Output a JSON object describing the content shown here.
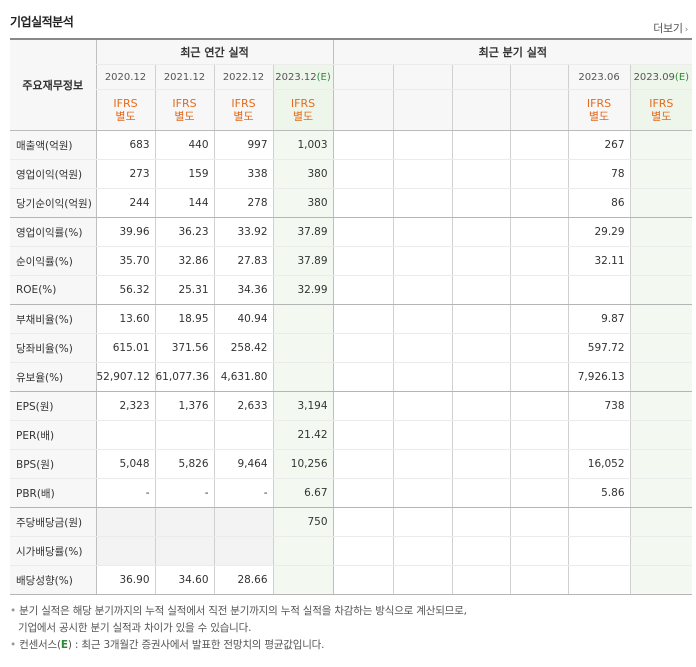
{
  "title": "기업실적분석",
  "more_label": "더보기",
  "header": {
    "row_label": "주요재무정보",
    "annual_group": "최근 연간 실적",
    "quarter_group": "최근 분기 실적",
    "annual_periods": [
      "2020.12",
      "2021.12",
      "2022.12",
      "2023.12(E)"
    ],
    "quarter_periods": [
      "",
      "",
      "",
      "",
      "2023.06",
      "2023.09(E)"
    ],
    "ifrs_top": "IFRS",
    "ifrs_bottom": "별도"
  },
  "rows": [
    {
      "label": "매출액(억원)",
      "annual": [
        "683",
        "440",
        "997",
        "1,003"
      ],
      "quarter": [
        "",
        "",
        "",
        "",
        "267",
        ""
      ]
    },
    {
      "label": "영업이익(억원)",
      "annual": [
        "273",
        "159",
        "338",
        "380"
      ],
      "quarter": [
        "",
        "",
        "",
        "",
        "78",
        ""
      ]
    },
    {
      "label": "당기순이익(억원)",
      "annual": [
        "244",
        "144",
        "278",
        "380"
      ],
      "quarter": [
        "",
        "",
        "",
        "",
        "86",
        ""
      ]
    },
    {
      "label": "영업이익률(%)",
      "annual": [
        "39.96",
        "36.23",
        "33.92",
        "37.89"
      ],
      "quarter": [
        "",
        "",
        "",
        "",
        "29.29",
        ""
      ]
    },
    {
      "label": "순이익률(%)",
      "annual": [
        "35.70",
        "32.86",
        "27.83",
        "37.89"
      ],
      "quarter": [
        "",
        "",
        "",
        "",
        "32.11",
        ""
      ]
    },
    {
      "label": "ROE(%)",
      "annual": [
        "56.32",
        "25.31",
        "34.36",
        "32.99"
      ],
      "quarter": [
        "",
        "",
        "",
        "",
        "",
        ""
      ]
    },
    {
      "label": "부채비율(%)",
      "annual": [
        "13.60",
        "18.95",
        "40.94",
        ""
      ],
      "quarter": [
        "",
        "",
        "",
        "",
        "9.87",
        ""
      ]
    },
    {
      "label": "당좌비율(%)",
      "annual": [
        "615.01",
        "371.56",
        "258.42",
        ""
      ],
      "quarter": [
        "",
        "",
        "",
        "",
        "597.72",
        ""
      ]
    },
    {
      "label": "유보율(%)",
      "annual": [
        "52,907.12",
        "61,077.36",
        "4,631.80",
        ""
      ],
      "quarter": [
        "",
        "",
        "",
        "",
        "7,926.13",
        ""
      ]
    },
    {
      "label": "EPS(원)",
      "annual": [
        "2,323",
        "1,376",
        "2,633",
        "3,194"
      ],
      "quarter": [
        "",
        "",
        "",
        "",
        "738",
        ""
      ]
    },
    {
      "label": "PER(배)",
      "annual": [
        "",
        "",
        "",
        "21.42"
      ],
      "quarter": [
        "",
        "",
        "",
        "",
        "",
        ""
      ]
    },
    {
      "label": "BPS(원)",
      "annual": [
        "5,048",
        "5,826",
        "9,464",
        "10,256"
      ],
      "quarter": [
        "",
        "",
        "",
        "",
        "16,052",
        ""
      ]
    },
    {
      "label": "PBR(배)",
      "annual": [
        "-",
        "-",
        "-",
        "6.67"
      ],
      "quarter": [
        "",
        "",
        "",
        "",
        "5.86",
        ""
      ]
    },
    {
      "label": "주당배당금(원)",
      "annual": [
        "",
        "",
        "",
        "750"
      ],
      "quarter": [
        "",
        "",
        "",
        "",
        "",
        ""
      ]
    },
    {
      "label": "시가배당률(%)",
      "annual": [
        "",
        "",
        "",
        ""
      ],
      "quarter": [
        "",
        "",
        "",
        "",
        "",
        ""
      ]
    },
    {
      "label": "배당성향(%)",
      "annual": [
        "36.90",
        "34.60",
        "28.66",
        ""
      ],
      "quarter": [
        "",
        "",
        "",
        "",
        "",
        ""
      ]
    }
  ],
  "notes": {
    "bullet": "•",
    "line1": "분기 실적은 해당 분기까지의 누적 실적에서 직전 분기까지의 누적 실적을 차감하는 방식으로 계산되므로,",
    "line2": "기업에서 공시한 분기 실적과 차이가 있을 수 있습니다.",
    "line3_prefix": "컨센서스(",
    "line3_e": "E",
    "line3_suffix": ") : 최근 3개월간 증권사에서 발표한 전망치의 평균값입니다."
  },
  "colors": {
    "ifrs": "#e56a1c",
    "estimate_bg": "#f3f9f1",
    "estimate_mark": "#2f8a3a",
    "label_bg": "#f7f7f7"
  }
}
